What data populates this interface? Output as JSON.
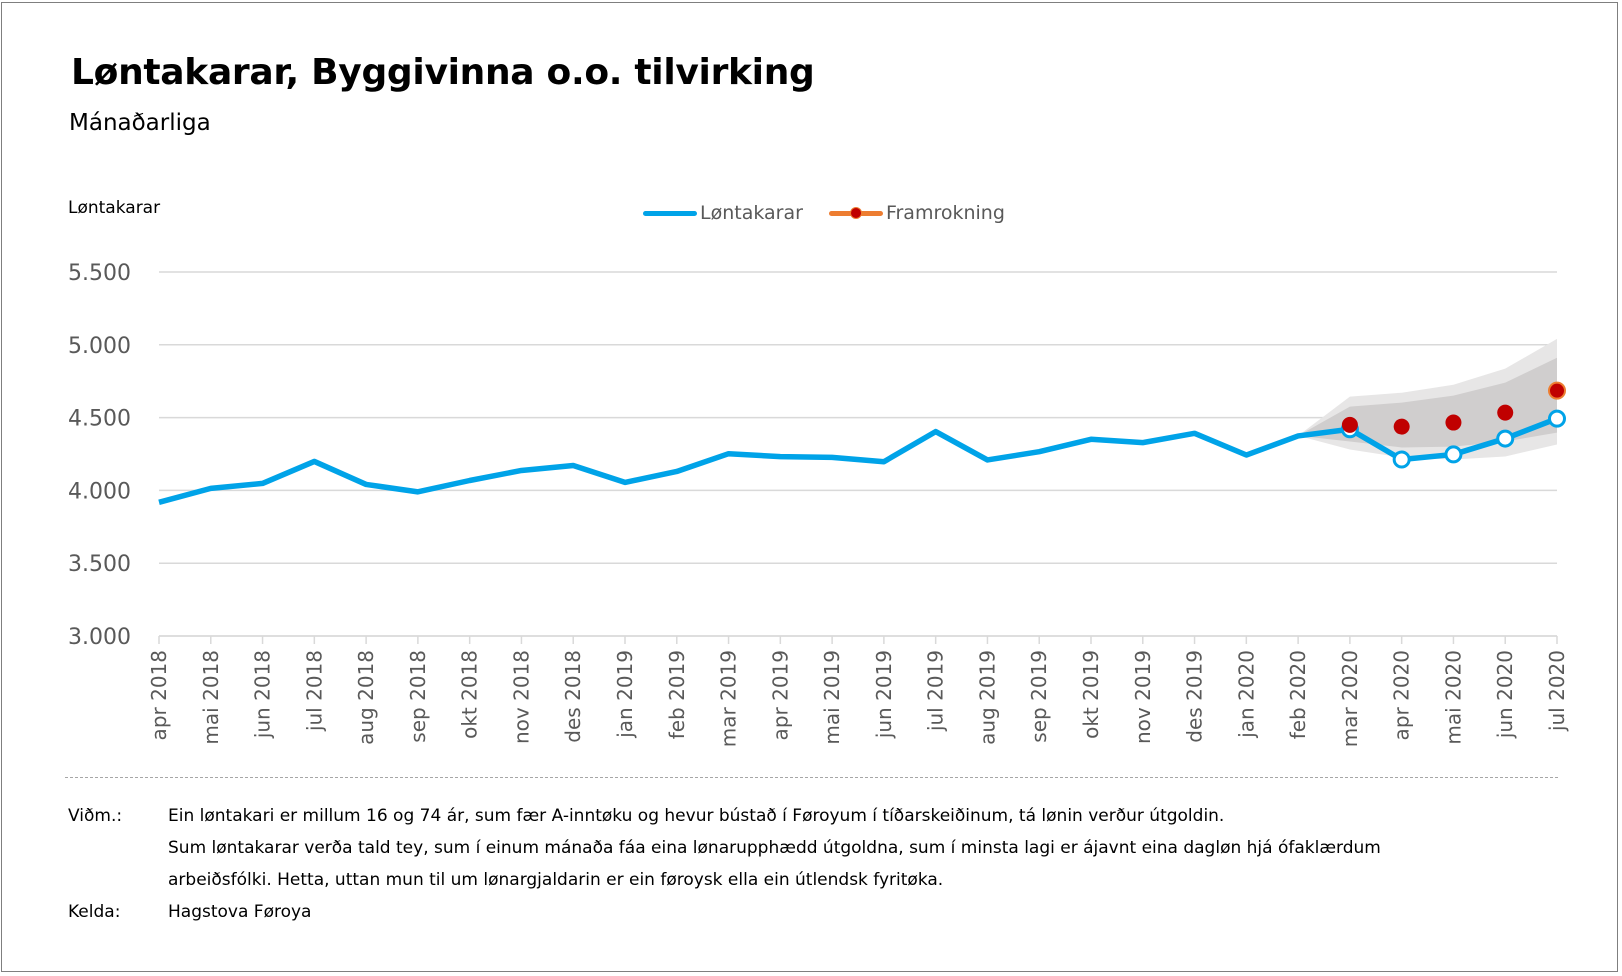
{
  "title": "Løntakarar, Byggivinna o.o. tilvirking",
  "subtitle": "Mánaðarliga",
  "y_axis_label": "Løntakarar",
  "legend": [
    {
      "label": "Løntakarar",
      "color": "#00A3E8",
      "style": "line"
    },
    {
      "label": "Framrokning",
      "color": "#ED7D31",
      "marker_color": "#C00000",
      "style": "line-marker"
    }
  ],
  "colors": {
    "actual_line": "#00A3E8",
    "forecast_marker": "#C00000",
    "forecast_marker_last_border": "#ED7D31",
    "band_outer": "#E7E6E6",
    "band_inner": "#D0CECE",
    "gridline": "#D9D9D9",
    "tick_text": "#595959"
  },
  "notes": {
    "label": "Viðm.:",
    "lines": [
      "Ein løntakari er millum 16 og 74 ár, sum fær A-inntøku og hevur bústað í Føroyum í tíðarskeiðinum, tá lønin verður útgoldin.",
      "Sum løntakarar verða tald tey, sum í einum mánaða fáa eina lønarupphædd útgoldna, sum í minsta lagi er ájavnt eina dagløn hjá ófaklærdum",
      "arbeiðsfólki. Hetta, uttan mun til um lønargjaldarin er ein føroysk ella ein útlendsk fyritøka."
    ]
  },
  "source": {
    "label": "Kelda:",
    "value": "Hagstova Føroya"
  },
  "chart_data": {
    "type": "line",
    "title": "Løntakarar, Byggivinna o.o. tilvirking",
    "subtitle": "Mánaðarliga",
    "xlabel": "",
    "ylabel": "Løntakarar",
    "ylim": [
      3000,
      5500
    ],
    "yticks": [
      3000,
      3500,
      4000,
      4500,
      5000,
      5500
    ],
    "ytick_labels": [
      "3.000",
      "3.500",
      "4.000",
      "4.500",
      "5.000",
      "5.500"
    ],
    "grid": true,
    "legend_position": "top",
    "categories": [
      "apr 2018",
      "mai 2018",
      "jun 2018",
      "jul 2018",
      "aug 2018",
      "sep 2018",
      "okt 2018",
      "nov 2018",
      "des 2018",
      "jan 2019",
      "feb 2019",
      "mar 2019",
      "apr 2019",
      "mai 2019",
      "jun 2019",
      "jul 2019",
      "aug 2019",
      "sep 2019",
      "okt 2019",
      "nov 2019",
      "des 2019",
      "jan 2020",
      "feb 2020",
      "mar 2020",
      "apr 2020",
      "mai 2020",
      "jun 2020",
      "jul 2020"
    ],
    "series": [
      {
        "name": "Løntakarar",
        "values": [
          3918,
          4014,
          4048,
          4199,
          4041,
          3990,
          4068,
          4137,
          4171,
          4055,
          4130,
          4252,
          4232,
          4227,
          4197,
          4404,
          4209,
          4266,
          4351,
          4328,
          4392,
          4243,
          4374,
          4420,
          4212,
          4247,
          4356,
          4493
        ],
        "open_markers_from_index": 23
      },
      {
        "name": "Framrokning",
        "values": [
          null,
          null,
          null,
          null,
          null,
          null,
          null,
          null,
          null,
          null,
          null,
          null,
          null,
          null,
          null,
          null,
          null,
          null,
          null,
          null,
          null,
          null,
          null,
          4450,
          4438,
          4466,
          4534,
          4685
        ]
      }
    ],
    "forecast_bands": {
      "start_index": 22,
      "outer_upper": [
        4375,
        4644,
        4671,
        4726,
        4836,
        5041
      ],
      "inner_upper": [
        4375,
        4575,
        4603,
        4651,
        4740,
        4911
      ],
      "inner_lower": [
        4375,
        4336,
        4295,
        4301,
        4336,
        4397
      ],
      "outer_lower": [
        4375,
        4281,
        4226,
        4212,
        4233,
        4315
      ]
    }
  }
}
